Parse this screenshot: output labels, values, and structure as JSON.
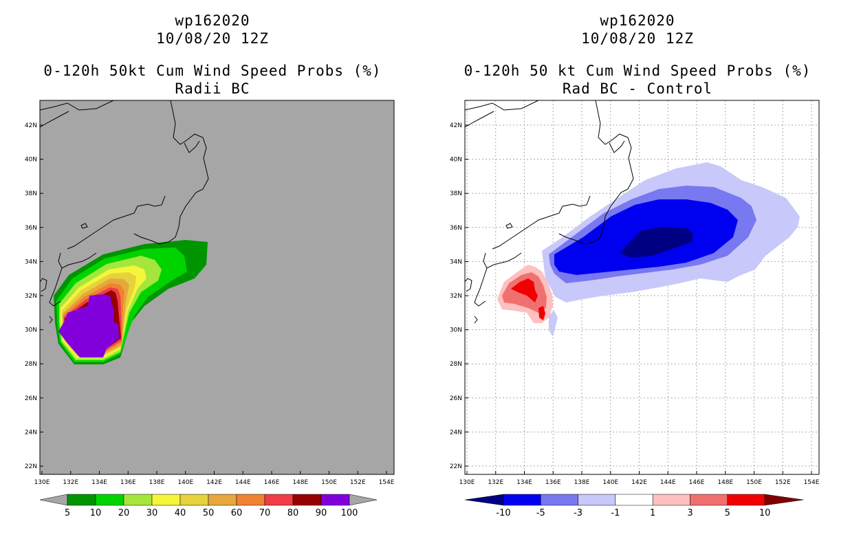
{
  "left": {
    "title": {
      "storm_id": "wp162020",
      "datetime": "10/08/20 12Z",
      "product": "0-120h 50kt Cum Wind Speed Probs (%)",
      "subtitle": "Radii BC"
    },
    "colorbar": {
      "labels": [
        "5",
        "10",
        "20",
        "30",
        "40",
        "50",
        "60",
        "70",
        "80",
        "90",
        "100"
      ],
      "colors": [
        "#a6a6a6",
        "#009500",
        "#00d400",
        "#a5e63c",
        "#f5f53a",
        "#e6d23c",
        "#e6a83c",
        "#f08232",
        "#f03c46",
        "#960000",
        "#8200dc",
        "#a6a6a6"
      ]
    },
    "background_color": "#a6a6a6"
  },
  "right": {
    "title": {
      "storm_id": "wp162020",
      "datetime": "10/08/20 12Z",
      "product": "0-120h 50 kt Cum Wind Speed Probs (%)",
      "subtitle": "Rad BC - Control"
    },
    "colorbar": {
      "labels": [
        "-10",
        "-5",
        "-3",
        "-1",
        "1",
        "3",
        "5",
        "10"
      ],
      "colors": [
        "#000082",
        "#0000f0",
        "#7878f0",
        "#c8c8fa",
        "#ffffff",
        "#ffc0c0",
        "#f07070",
        "#f00000",
        "#820000"
      ]
    }
  },
  "axes": {
    "lon_labels": [
      "130E",
      "132E",
      "134E",
      "136E",
      "138E",
      "140E",
      "142E",
      "144E",
      "146E",
      "148E",
      "150E",
      "152E",
      "154E"
    ],
    "lat_labels": [
      "22N",
      "24N",
      "26N",
      "28N",
      "30N",
      "32N",
      "34N",
      "36N",
      "38N",
      "40N",
      "42N"
    ]
  }
}
